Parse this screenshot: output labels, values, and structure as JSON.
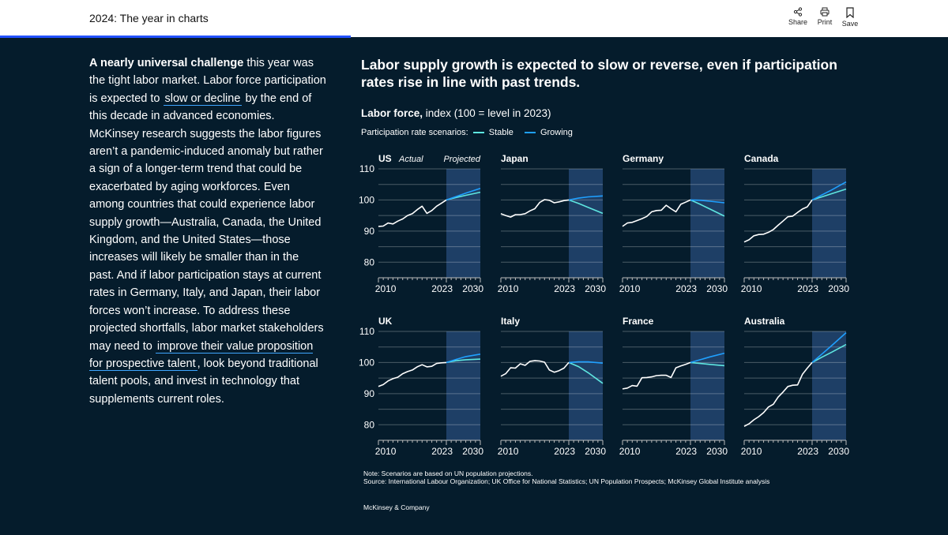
{
  "header": {
    "title": "2024: The year in charts",
    "actions": [
      {
        "label": "Share",
        "icon": "share-icon"
      },
      {
        "label": "Print",
        "icon": "print-icon"
      },
      {
        "label": "Save",
        "icon": "bookmark-icon"
      }
    ]
  },
  "reading_progress_percent": 37,
  "article": {
    "lead_bold": "A nearly universal challenge",
    "p1": " this year was the tight labor market. Labor force participation is expected to ",
    "link1": "slow or decline",
    "p2": " by the end of this decade in advanced economies. McKinsey research suggests the labor figures aren’t a pandemic-induced anomaly but rather a sign of a longer-term trend that could be exacerbated by aging workforces. Even among countries that could experience labor supply growth—Australia, Canada, the United Kingdom, and the United States—those increases will likely be smaller than in the past. And if labor participation stays at current rates in Germany, Italy, and Japan, their labor forces won’t increase. To address these projected shortfalls, labor market stakeholders may need to ",
    "link2": "improve their value proposition for prospective talent",
    "p3": ", look beyond traditional talent pools, and invest in technology that supplements current roles."
  },
  "chart_data": {
    "type": "line",
    "title": "Labor supply growth is expected to slow or reverse, even if participation rates rise in line with past trends.",
    "subtitle_bold": "Labor force,",
    "subtitle": " index (100 = level in 2023)",
    "legend_label": "Participation rate scenarios:",
    "series_names": {
      "stable": "Stable",
      "growing": "Growing"
    },
    "colors": {
      "stable": "#5ee6e0",
      "growing": "#1fa0ff",
      "actual": "#ffffff",
      "projected_band": "#1e3f66",
      "background": "#051c2c"
    },
    "period_labels": {
      "actual": "Actual",
      "projected": "Projected"
    },
    "xlim": [
      2009,
      2030
    ],
    "ylim": [
      75,
      110
    ],
    "x_ticks": [
      "2010",
      "2023",
      "2030"
    ],
    "y_ticks": [
      "110",
      "100",
      "90",
      "80"
    ],
    "actual_years": [
      2009,
      2010,
      2011,
      2012,
      2013,
      2014,
      2015,
      2016,
      2017,
      2018,
      2019,
      2020,
      2021,
      2022,
      2023
    ],
    "projected_years": [
      2023,
      2025,
      2027,
      2030
    ],
    "panels": [
      {
        "country": "US",
        "actual": [
          91.5,
          91.6,
          92.6,
          92.3,
          93.2,
          93.9,
          95.0,
          95.6,
          96.9,
          98.0,
          95.7,
          96.6,
          98.0,
          99.0,
          100
        ],
        "stable": [
          100,
          100.8,
          101.5,
          102.5
        ],
        "growing": [
          100,
          101.1,
          102.2,
          103.7
        ]
      },
      {
        "country": "Japan",
        "actual": [
          95.6,
          95.0,
          94.5,
          95.3,
          95.3,
          95.6,
          96.5,
          97.2,
          99.2,
          100.1,
          99.9,
          99.1,
          99.4,
          99.8,
          100
        ],
        "stable": [
          100,
          98.9,
          97.6,
          95.7
        ],
        "growing": [
          100,
          100.6,
          101.0,
          101.3
        ]
      },
      {
        "country": "Germany",
        "actual": [
          91.5,
          92.6,
          92.8,
          93.4,
          94.0,
          94.7,
          96.2,
          96.6,
          96.7,
          98.3,
          97.2,
          96.2,
          98.6,
          99.3,
          100
        ],
        "stable": [
          100,
          98.6,
          97.1,
          94.8
        ],
        "growing": [
          100,
          99.9,
          99.6,
          99.1
        ]
      },
      {
        "country": "Canada",
        "actual": [
          86.5,
          87.2,
          88.5,
          88.9,
          89.0,
          89.6,
          90.5,
          91.9,
          93.2,
          94.6,
          94.8,
          96.0,
          97.1,
          97.8,
          100
        ],
        "stable": [
          100,
          101.0,
          102.0,
          103.5
        ],
        "growing": [
          100,
          101.6,
          103.2,
          105.8
        ]
      },
      {
        "country": "UK",
        "actual": [
          92.3,
          92.9,
          94.1,
          94.8,
          95.3,
          96.4,
          97.1,
          97.6,
          98.6,
          99.3,
          98.6,
          98.8,
          99.7,
          99.9,
          100
        ],
        "stable": [
          100,
          100.6,
          100.9,
          101.1
        ],
        "growing": [
          100,
          101.0,
          101.9,
          102.7
        ]
      },
      {
        "country": "Italy",
        "actual": [
          95.6,
          96.4,
          98.3,
          98.2,
          99.6,
          99.1,
          100.4,
          100.6,
          100.5,
          100.1,
          97.6,
          96.9,
          97.4,
          98.2,
          100
        ],
        "stable": [
          100,
          98.7,
          96.7,
          93.3
        ],
        "growing": [
          100,
          100.2,
          100.2,
          99.8
        ]
      },
      {
        "country": "France",
        "actual": [
          91.5,
          91.8,
          92.6,
          92.4,
          95.1,
          95.2,
          95.4,
          95.8,
          95.9,
          95.9,
          95.2,
          98.3,
          98.9,
          99.4,
          100
        ],
        "stable": [
          100,
          99.7,
          99.4,
          99.0
        ],
        "growing": [
          100,
          100.9,
          101.8,
          103.0
        ]
      },
      {
        "country": "Australia",
        "actual": [
          79.5,
          80.3,
          81.6,
          82.6,
          83.9,
          85.7,
          86.6,
          88.9,
          90.5,
          92.3,
          92.7,
          92.8,
          96.2,
          98.2,
          100
        ],
        "stable": [
          100,
          101.7,
          103.3,
          105.8
        ],
        "growing": [
          100,
          102.7,
          105.4,
          109.6
        ]
      }
    ],
    "note": "Note: Scenarios are based on UN population projections.",
    "source": "Source: International Labour Organization; UK Office for National Statistics; UN Population Prospects; McKinsey Global Institute analysis",
    "brand": "McKinsey & Company"
  }
}
